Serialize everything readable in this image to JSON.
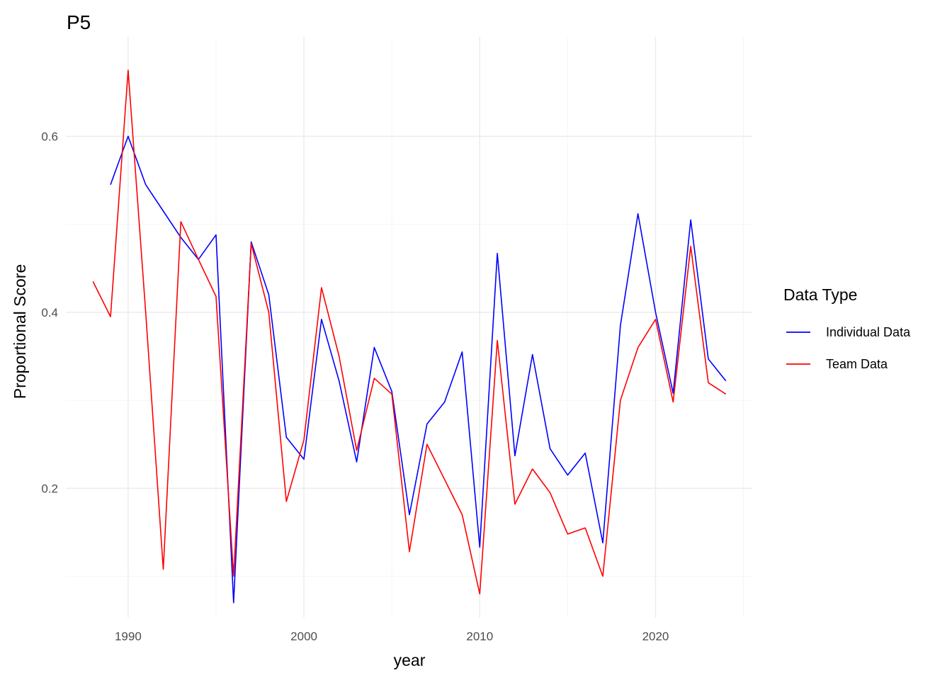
{
  "chart_data": {
    "type": "line",
    "title": "P5",
    "xlabel": "year",
    "ylabel": "Proportional Score",
    "xlim": [
      1986.5,
      2025.5
    ],
    "ylim": [
      0.053,
      0.713
    ],
    "x_ticks": [
      1990,
      2000,
      2010,
      2020
    ],
    "x_minor_ticks": [
      1995,
      2005,
      2015,
      2025
    ],
    "y_ticks": [
      0.2,
      0.4,
      0.6
    ],
    "y_tick_labels": [
      "0.2",
      "0.4",
      "0.6"
    ],
    "y_minor_ticks": [
      0.1,
      0.3,
      0.5
    ],
    "grid": true,
    "legend": {
      "title": "Data Type",
      "position": "right"
    },
    "series": [
      {
        "name": "Individual Data",
        "color": "#0000ff",
        "x": [
          1989,
          1990,
          1991,
          1992,
          1993,
          1994,
          1995,
          1996,
          1997,
          1998,
          1999,
          2000,
          2001,
          2002,
          2003,
          2004,
          2005,
          2006,
          2007,
          2008,
          2009,
          2010,
          2011,
          2012,
          2013,
          2014,
          2015,
          2016,
          2017,
          2018,
          2019,
          2020,
          2021,
          2022,
          2023,
          2024
        ],
        "values": [
          0.545,
          0.6,
          0.545,
          0.515,
          0.485,
          0.46,
          0.488,
          0.07,
          0.48,
          0.42,
          0.258,
          0.233,
          0.392,
          0.322,
          0.23,
          0.36,
          0.31,
          0.17,
          0.273,
          0.298,
          0.355,
          0.133,
          0.467,
          0.237,
          0.352,
          0.245,
          0.215,
          0.24,
          0.138,
          0.385,
          0.512,
          0.4,
          0.308,
          0.505,
          0.347,
          0.322
        ]
      },
      {
        "name": "Team Data",
        "color": "#ff0000",
        "x": [
          1988,
          1989,
          1990,
          1991,
          1992,
          1993,
          1994,
          1995,
          1996,
          1997,
          1998,
          1999,
          2000,
          2001,
          2002,
          2003,
          2004,
          2005,
          2006,
          2007,
          2008,
          2009,
          2010,
          2011,
          2012,
          2013,
          2014,
          2015,
          2016,
          2017,
          2018,
          2019,
          2020,
          2021,
          2022,
          2023,
          2024
        ],
        "values": [
          0.435,
          0.395,
          0.675,
          0.4,
          0.108,
          0.503,
          0.46,
          0.418,
          0.1,
          0.478,
          0.4,
          0.185,
          0.255,
          0.428,
          0.35,
          0.243,
          0.325,
          0.307,
          0.128,
          0.25,
          0.21,
          0.17,
          0.08,
          0.368,
          0.182,
          0.222,
          0.195,
          0.148,
          0.155,
          0.1,
          0.3,
          0.36,
          0.392,
          0.298,
          0.475,
          0.32,
          0.307
        ]
      }
    ]
  }
}
